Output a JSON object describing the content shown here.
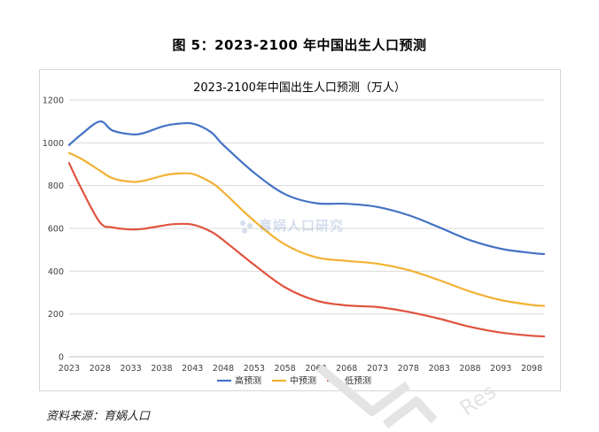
{
  "figure_caption": "图 5：2023-2100 年中国出生人口预测",
  "source_note": "资料来源：育娲人口",
  "watermark_text": "育娲人口研究",
  "corner_watermark_text": "Res",
  "colors": {
    "high": "#4472c4",
    "mid": "#f2b134",
    "low": "#e0533e",
    "grid": "#d9d9d9",
    "axis_text": "#404040"
  },
  "chart_data": {
    "type": "line",
    "title": "2023-2100年中国出生人口预测（万人）",
    "xlabel": "",
    "ylabel": "",
    "ylim": [
      0,
      1200
    ],
    "yticks": [
      0,
      200,
      400,
      600,
      800,
      1000,
      1200
    ],
    "xlim": [
      2023,
      2100
    ],
    "xticks": [
      "2023",
      "2028",
      "2033",
      "2038",
      "2043",
      "2048",
      "2053",
      "2058",
      "2063",
      "2068",
      "2073",
      "2078",
      "2083",
      "2088",
      "2093",
      "2098"
    ],
    "grid": "horizontal",
    "legend_position": "bottom",
    "series": [
      {
        "name": "高预测",
        "color": "#4472c4",
        "points": [
          [
            2023,
            990
          ],
          [
            2025,
            1040
          ],
          [
            2028,
            1100
          ],
          [
            2030,
            1058
          ],
          [
            2033,
            1040
          ],
          [
            2035,
            1045
          ],
          [
            2038,
            1075
          ],
          [
            2040,
            1087
          ],
          [
            2043,
            1090
          ],
          [
            2046,
            1050
          ],
          [
            2048,
            990
          ],
          [
            2053,
            860
          ],
          [
            2058,
            760
          ],
          [
            2063,
            718
          ],
          [
            2068,
            715
          ],
          [
            2073,
            700
          ],
          [
            2078,
            662
          ],
          [
            2083,
            605
          ],
          [
            2088,
            545
          ],
          [
            2093,
            505
          ],
          [
            2098,
            485
          ],
          [
            2100,
            480
          ]
        ]
      },
      {
        "name": "中预测",
        "color": "#f2b134",
        "points": [
          [
            2023,
            952
          ],
          [
            2025,
            925
          ],
          [
            2028,
            870
          ],
          [
            2030,
            835
          ],
          [
            2033,
            818
          ],
          [
            2035,
            822
          ],
          [
            2038,
            845
          ],
          [
            2040,
            855
          ],
          [
            2043,
            855
          ],
          [
            2046,
            815
          ],
          [
            2048,
            770
          ],
          [
            2053,
            635
          ],
          [
            2058,
            525
          ],
          [
            2063,
            465
          ],
          [
            2068,
            448
          ],
          [
            2073,
            435
          ],
          [
            2078,
            405
          ],
          [
            2083,
            358
          ],
          [
            2088,
            305
          ],
          [
            2093,
            265
          ],
          [
            2098,
            242
          ],
          [
            2100,
            238
          ]
        ]
      },
      {
        "name": "低预测",
        "color": "#e0533e",
        "points": [
          [
            2023,
            905
          ],
          [
            2025,
            785
          ],
          [
            2028,
            628
          ],
          [
            2030,
            605
          ],
          [
            2033,
            595
          ],
          [
            2035,
            598
          ],
          [
            2038,
            612
          ],
          [
            2040,
            620
          ],
          [
            2043,
            618
          ],
          [
            2046,
            585
          ],
          [
            2048,
            545
          ],
          [
            2053,
            430
          ],
          [
            2058,
            325
          ],
          [
            2063,
            263
          ],
          [
            2068,
            240
          ],
          [
            2073,
            232
          ],
          [
            2078,
            210
          ],
          [
            2083,
            178
          ],
          [
            2088,
            140
          ],
          [
            2093,
            113
          ],
          [
            2098,
            98
          ],
          [
            2100,
            95
          ]
        ]
      }
    ]
  }
}
